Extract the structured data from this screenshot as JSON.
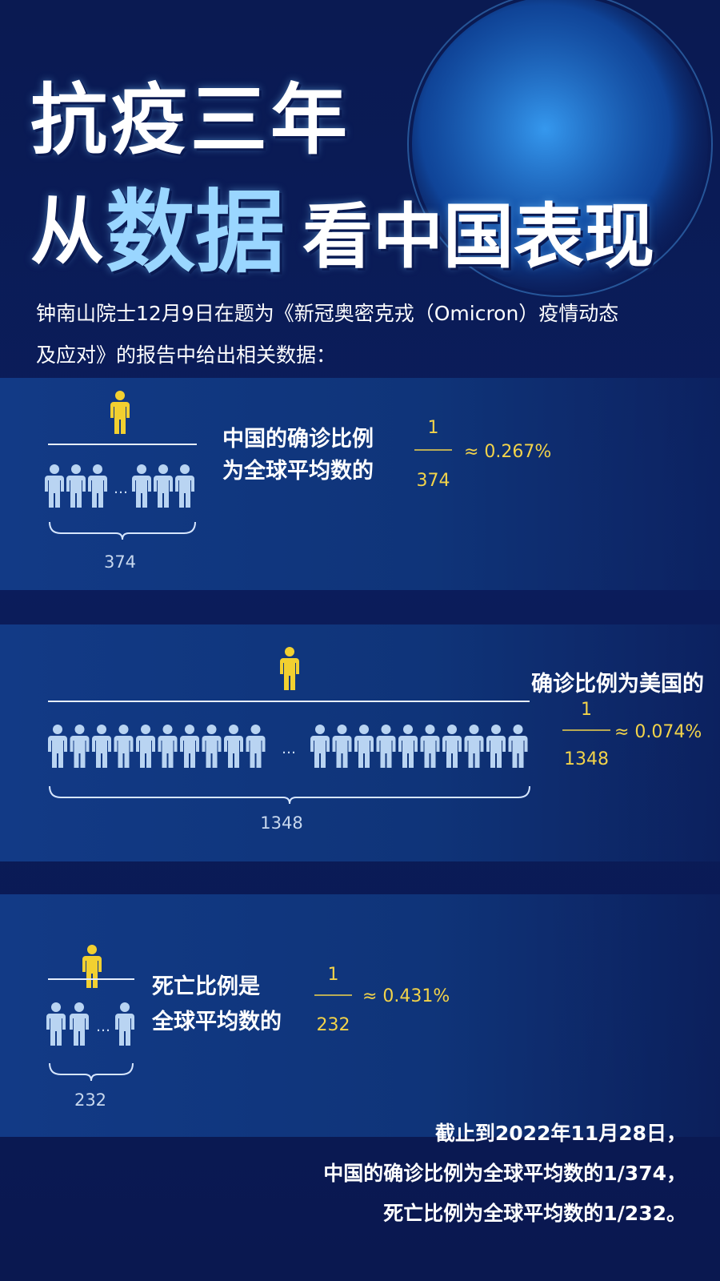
{
  "title": {
    "line1": "抗疫三年",
    "line2": [
      "从",
      "数据",
      "看中国表现"
    ]
  },
  "intro": [
    "钟南山院士12月9日在题为《新冠奥密克戎（Omicron）疫情动态",
    "及应对》的报告中给出相关数据："
  ],
  "panels": [
    {
      "label": [
        "中国的确诊比例",
        "为全球平均数的"
      ],
      "numerator": 1,
      "denominator": 374,
      "approx": "≈ 0.267%",
      "count": 374,
      "ellipsis": "…"
    },
    {
      "label": [
        "确诊比例为美国的"
      ],
      "numerator": 1,
      "denominator": 1348,
      "approx": "≈ 0.074%",
      "count": 1348,
      "ellipsis": "…"
    },
    {
      "label": [
        "死亡比例是",
        "全球平均数的"
      ],
      "numerator": 1,
      "denominator": 232,
      "approx": "≈ 0.431%",
      "count": 232,
      "ellipsis": "…"
    }
  ],
  "footer": [
    "截止到2022年11月28日，",
    "中国的确诊比例为全球平均数的1/374，",
    "死亡比例为全球平均数的1/232。"
  ]
}
